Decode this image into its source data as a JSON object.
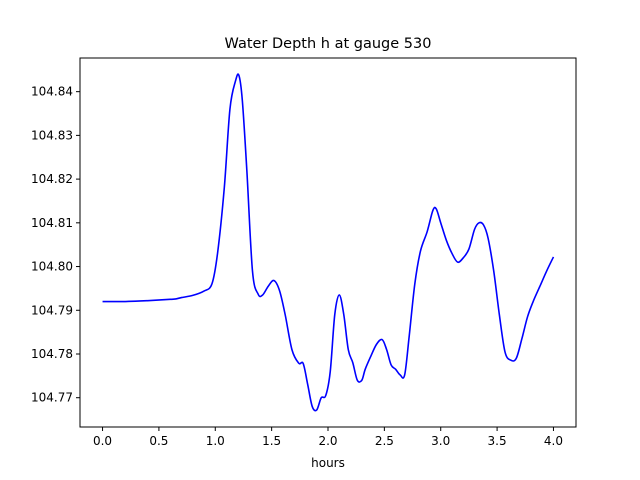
{
  "chart_data": {
    "type": "line",
    "title": "Water Depth h at gauge 530",
    "xlabel": "hours",
    "ylabel": "",
    "xlim": [
      -0.2,
      4.2
    ],
    "ylim": [
      104.7633,
      104.8477
    ],
    "xticks": [
      0.0,
      0.5,
      1.0,
      1.5,
      2.0,
      2.5,
      3.0,
      3.5,
      4.0
    ],
    "xtick_labels": [
      "0.0",
      "0.5",
      "1.0",
      "1.5",
      "2.0",
      "2.5",
      "3.0",
      "3.5",
      "4.0"
    ],
    "yticks": [
      104.77,
      104.78,
      104.79,
      104.8,
      104.81,
      104.82,
      104.83,
      104.84
    ],
    "ytick_labels": [
      "104.77",
      "104.78",
      "104.79",
      "104.80",
      "104.81",
      "104.82",
      "104.83",
      "104.84"
    ],
    "grid": false,
    "series": [
      {
        "color": "#0000ff",
        "x": [
          0.0,
          0.2,
          0.4,
          0.6,
          0.65,
          0.7,
          0.8,
          0.9,
          0.97,
          1.02,
          1.08,
          1.13,
          1.18,
          1.21,
          1.24,
          1.28,
          1.33,
          1.38,
          1.42,
          1.47,
          1.52,
          1.57,
          1.62,
          1.68,
          1.74,
          1.78,
          1.82,
          1.86,
          1.9,
          1.94,
          1.98,
          2.02,
          2.06,
          2.1,
          2.14,
          2.18,
          2.22,
          2.26,
          2.3,
          2.33,
          2.38,
          2.43,
          2.48,
          2.52,
          2.56,
          2.6,
          2.64,
          2.68,
          2.72,
          2.77,
          2.82,
          2.88,
          2.93,
          2.96,
          3.0,
          3.05,
          3.1,
          3.15,
          3.2,
          3.25,
          3.3,
          3.34,
          3.38,
          3.42,
          3.47,
          3.52,
          3.57,
          3.62,
          3.67,
          3.72,
          3.77,
          3.82,
          3.88,
          3.94,
          4.0
        ],
        "y": [
          104.792,
          104.792,
          104.7922,
          104.7925,
          104.7926,
          104.7929,
          104.7934,
          104.7944,
          104.796,
          104.803,
          104.818,
          104.836,
          104.8425,
          104.8437,
          104.838,
          104.822,
          104.799,
          104.7937,
          104.7935,
          104.7955,
          104.7968,
          104.7945,
          104.789,
          104.781,
          104.7779,
          104.7778,
          104.773,
          104.768,
          104.7672,
          104.77,
          104.7705,
          104.776,
          104.789,
          104.7935,
          104.789,
          104.781,
          104.778,
          104.774,
          104.774,
          104.7765,
          104.7795,
          104.7822,
          104.7833,
          104.781,
          104.7775,
          104.7765,
          104.7752,
          104.7752,
          104.784,
          104.796,
          104.8035,
          104.808,
          104.8128,
          104.8132,
          104.81,
          104.806,
          104.803,
          104.801,
          104.802,
          104.804,
          104.8085,
          104.81,
          104.8095,
          104.8065,
          104.799,
          104.789,
          104.7805,
          104.7786,
          104.779,
          104.7835,
          104.7885,
          104.792,
          104.7955,
          104.799,
          104.8022
        ]
      }
    ]
  }
}
